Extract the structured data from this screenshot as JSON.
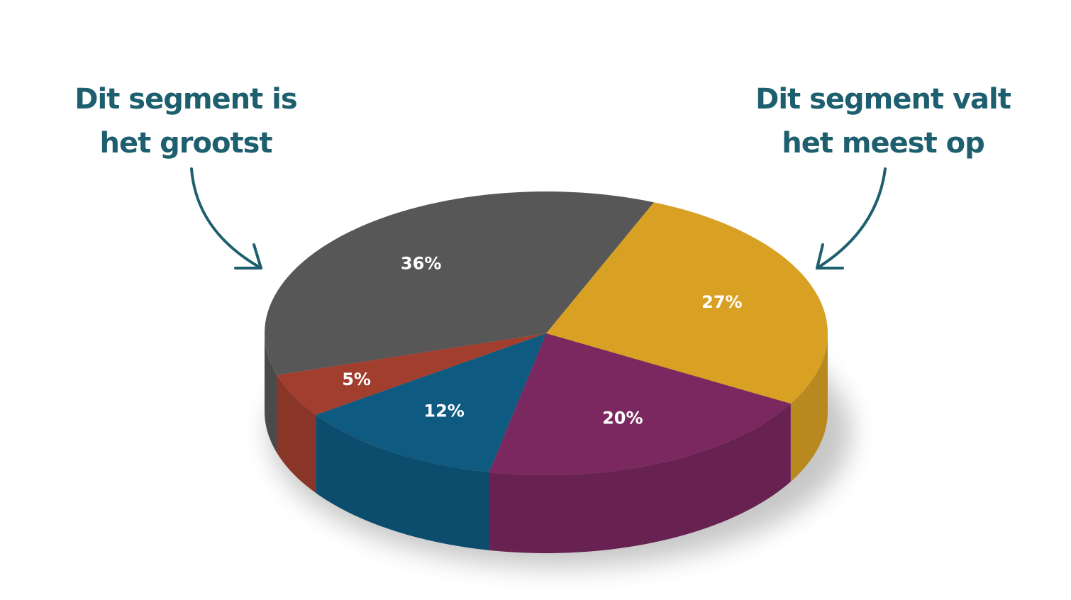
{
  "chart_data": {
    "type": "pie",
    "values": [
      27,
      20,
      12,
      5,
      36
    ],
    "value_labels": [
      "27%",
      "20%",
      "12%",
      "5%",
      "36%"
    ],
    "colors": [
      "#d8a124",
      "#7a285f",
      "#0e5a80",
      "#a13e2e",
      "#575757"
    ],
    "annotations": [
      {
        "lines": [
          "Dit segment is",
          "het grootst"
        ]
      },
      {
        "lines": [
          "Dit segment valt",
          "het meest op"
        ]
      }
    ]
  }
}
